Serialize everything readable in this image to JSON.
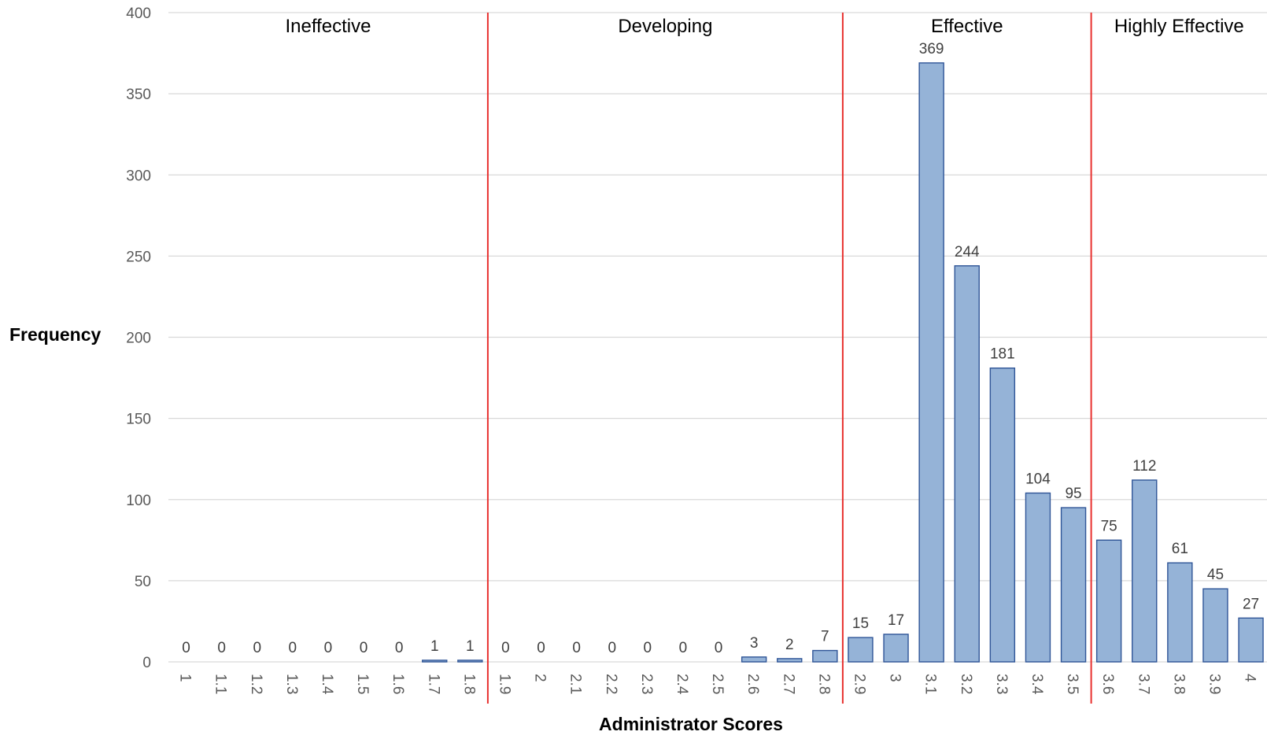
{
  "chart_data": {
    "type": "bar",
    "xlabel": "Administrator Scores",
    "ylabel": "Frequency",
    "ylim": [
      0,
      400
    ],
    "yticks": [
      0,
      50,
      100,
      150,
      200,
      250,
      300,
      350,
      400
    ],
    "grid": "horizontal",
    "categories": [
      "1",
      "1.1",
      "1.2",
      "1.3",
      "1.4",
      "1.5",
      "1.6",
      "1.7",
      "1.8",
      "1.9",
      "2",
      "2.1",
      "2.2",
      "2.3",
      "2.4",
      "2.5",
      "2.6",
      "2.7",
      "2.8",
      "2.9",
      "3",
      "3.1",
      "3.2",
      "3.3",
      "3.4",
      "3.5",
      "3.6",
      "3.7",
      "3.8",
      "3.9",
      "4"
    ],
    "values": [
      0,
      0,
      0,
      0,
      0,
      0,
      0,
      1,
      1,
      0,
      0,
      0,
      0,
      0,
      0,
      0,
      3,
      2,
      7,
      15,
      17,
      369,
      244,
      181,
      104,
      95,
      75,
      112,
      61,
      45,
      27
    ],
    "regions": [
      {
        "label": "Ineffective",
        "start": "1",
        "end": "1.8"
      },
      {
        "label": "Developing",
        "start": "1.9",
        "end": "2.8"
      },
      {
        "label": "Effective",
        "start": "2.9",
        "end": "3.5"
      },
      {
        "label": "Highly Effective",
        "start": "3.6",
        "end": "4"
      }
    ],
    "colors": {
      "bar_fill": "#95b3d7",
      "bar_stroke": "#2f5597",
      "divider": "#e8312f",
      "gridline": "#d9d9d9"
    }
  }
}
